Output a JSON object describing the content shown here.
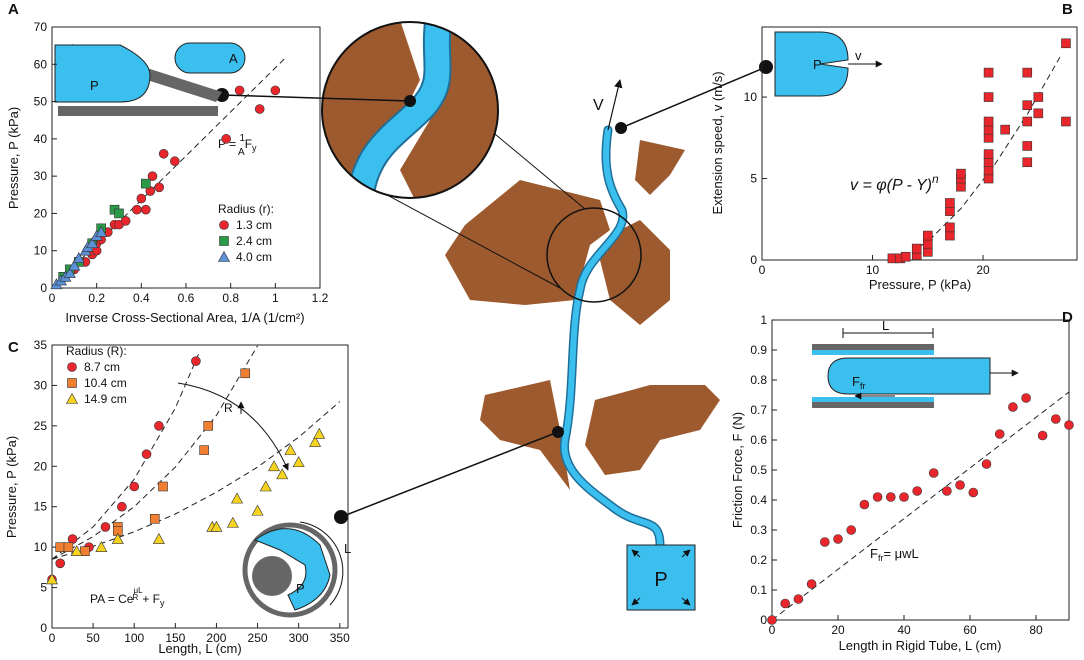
{
  "chart_data": [
    {
      "panel": "A",
      "type": "scatter",
      "xlabel": "Inverse Cross-Sectional Area, 1/A (1/cm²)",
      "ylabel": "Pressure, P (kPa)",
      "xlim": [
        0,
        1.2
      ],
      "xticks": [
        0,
        0.2,
        0.4,
        0.6,
        0.8,
        1,
        1.2
      ],
      "ylim": [
        0,
        70
      ],
      "yticks": [
        0,
        10,
        20,
        30,
        40,
        50,
        60,
        70
      ],
      "legend_title": "Radius (r):",
      "legend": "center right",
      "series": [
        {
          "name": "1.3 cm",
          "color": "#e8262b",
          "marker": "circle",
          "x": [
            0.1,
            0.15,
            0.18,
            0.2,
            0.2,
            0.22,
            0.25,
            0.28,
            0.3,
            0.33,
            0.38,
            0.42,
            0.4,
            0.44,
            0.48,
            0.45,
            0.5,
            0.55,
            0.78,
            0.84,
            0.93,
            1.0
          ],
          "values": [
            5,
            7,
            9,
            10,
            12,
            13,
            15,
            17,
            17,
            18,
            21,
            21,
            24,
            26,
            27,
            30,
            36,
            34,
            40,
            53,
            48,
            53
          ]
        },
        {
          "name": "2.4 cm",
          "color": "#2a9a48",
          "marker": "square",
          "x": [
            0.05,
            0.08,
            0.12,
            0.18,
            0.22,
            0.28,
            0.3,
            0.42
          ],
          "values": [
            3,
            5,
            7,
            12,
            16,
            21,
            20,
            28
          ]
        },
        {
          "name": "4.0 cm",
          "color": "#5b8fd6",
          "marker": "triangle",
          "x": [
            0.02,
            0.04,
            0.06,
            0.08,
            0.1,
            0.12,
            0.15,
            0.16,
            0.18,
            0.2,
            0.22
          ],
          "values": [
            1,
            2,
            3,
            4,
            6,
            8,
            10,
            11,
            12,
            14,
            15
          ]
        }
      ],
      "fit": {
        "x": [
          0,
          1.05
        ],
        "y": [
          0,
          62
        ]
      },
      "annotation": [
        "P = ",
        "1",
        "A",
        "F",
        "y"
      ],
      "inset_labels": [
        "P",
        "A"
      ]
    },
    {
      "panel": "B",
      "type": "scatter",
      "xlabel": "Pressure, P (kPa)",
      "ylabel": "Extension speed, v (m/s)",
      "xlim": [
        0,
        28.5
      ],
      "xticks": [
        0,
        10,
        20
      ],
      "ylim": [
        0,
        14.3
      ],
      "yticks": [
        0,
        5,
        10
      ],
      "series": [
        {
          "color": "#e8262b",
          "marker": "square",
          "x": [
            11.8,
            12.5,
            13,
            14,
            14,
            15,
            15,
            15,
            17,
            17,
            17,
            17,
            18,
            18,
            18,
            20.5,
            20.5,
            20.5,
            20.5,
            20.5,
            20.5,
            20.5,
            20.5,
            20.5,
            22,
            24,
            24,
            24,
            24,
            24,
            25,
            25,
            27.5,
            27.5
          ],
          "values": [
            0.1,
            0.1,
            0.2,
            0.3,
            0.7,
            0.5,
            1,
            1.5,
            1.5,
            2,
            3,
            3.5,
            4.5,
            5,
            5.3,
            5,
            5.5,
            6,
            6.5,
            7.5,
            8,
            8.5,
            10,
            11.5,
            8,
            6,
            7,
            8.5,
            9.5,
            11.5,
            9,
            10,
            8.5,
            13.3
          ]
        }
      ],
      "fit": {
        "x": [
          12,
          15,
          18,
          21,
          24,
          27
        ],
        "y": [
          0,
          1.12,
          3.16,
          5.8,
          8.94,
          12.5
        ]
      },
      "annotation": [
        "v = φ(P - Y)",
        "n"
      ],
      "inset_labels": [
        "P",
        "v"
      ]
    },
    {
      "panel": "C",
      "type": "scatter",
      "xlabel": "Length, L (cm)",
      "ylabel": "Pressure, P (kPa)",
      "xlim": [
        0,
        360
      ],
      "xticks": [
        0,
        50,
        100,
        150,
        200,
        250,
        300,
        350
      ],
      "ylim": [
        0,
        35
      ],
      "yticks": [
        0,
        5,
        10,
        15,
        20,
        25,
        30,
        35
      ],
      "legend_title": "Radius (R):",
      "legend": "upper left",
      "series": [
        {
          "name": "8.7 cm",
          "color": "#e8262b",
          "marker": "circle",
          "x": [
            0,
            10,
            15,
            25,
            45,
            65,
            85,
            100,
            115,
            130,
            175
          ],
          "values": [
            6,
            8,
            10,
            11,
            10,
            12.5,
            15,
            17.5,
            21.5,
            25,
            33
          ]
        },
        {
          "name": "10.4 cm",
          "color": "#f07f32",
          "marker": "square",
          "x": [
            10,
            20,
            40,
            80,
            80,
            125,
            135,
            185,
            190,
            235
          ],
          "values": [
            10,
            10,
            9.5,
            12.5,
            12,
            13.5,
            17.5,
            22,
            25,
            31.5
          ]
        },
        {
          "name": "14.9 cm",
          "color": "#f5d320",
          "marker": "triangle",
          "x": [
            0,
            30,
            60,
            80,
            130,
            195,
            200,
            220,
            225,
            250,
            260,
            270,
            280,
            290,
            300,
            320,
            325
          ],
          "values": [
            6,
            9.5,
            10,
            11,
            11,
            12.5,
            12.5,
            13,
            16,
            14.5,
            17.5,
            20,
            19,
            22,
            20.5,
            23,
            24
          ]
        }
      ],
      "fits": [
        {
          "x": [
            0,
            50,
            100,
            150,
            180
          ],
          "y": [
            8.5,
            12.5,
            18.4,
            27.2,
            34.3
          ]
        },
        {
          "x": [
            0,
            50,
            100,
            150,
            200,
            250
          ],
          "y": [
            8.5,
            11.3,
            15.0,
            19.9,
            26.3,
            34.9
          ]
        },
        {
          "x": [
            0,
            50,
            100,
            150,
            200,
            250,
            300,
            350
          ],
          "y": [
            8.5,
            10.1,
            11.9,
            14.1,
            16.8,
            19.9,
            23.6,
            28
          ]
        }
      ],
      "annotation": [
        "PA = Ce",
        "μL",
        "R",
        "+ F",
        "y"
      ],
      "arrow_label": "R",
      "inset_labels": [
        "P",
        "L"
      ]
    },
    {
      "panel": "D",
      "type": "scatter",
      "xlabel": "Length in Rigid Tube, L (cm)",
      "ylabel": "Friction Force, F (N)",
      "xlim": [
        0,
        90
      ],
      "xticks": [
        0,
        20,
        40,
        60,
        80
      ],
      "ylim": [
        0,
        1
      ],
      "yticks": [
        0,
        0.1,
        0.2,
        0.3,
        0.4,
        0.5,
        0.6,
        0.7,
        0.8,
        0.9,
        1
      ],
      "series": [
        {
          "color": "#e8262b",
          "marker": "circle",
          "x": [
            0,
            4,
            8,
            12,
            16,
            20,
            24,
            28,
            32,
            36,
            40,
            44,
            49,
            53,
            57,
            61,
            65,
            69,
            73,
            77,
            82,
            86,
            90
          ],
          "values": [
            0,
            0.055,
            0.07,
            0.12,
            0.26,
            0.27,
            0.3,
            0.385,
            0.41,
            0.41,
            0.41,
            0.43,
            0.49,
            0.43,
            0.45,
            0.425,
            0.52,
            0.62,
            0.71,
            0.74,
            0.615,
            0.67,
            0.65
          ]
        }
      ],
      "fit": {
        "x": [
          0,
          90
        ],
        "y": [
          0,
          0.76
        ]
      },
      "annotation": [
        "F",
        "fr",
        "=  μwL"
      ],
      "inset_labels": [
        "L",
        "F",
        "fr"
      ]
    }
  ],
  "diagram": {
    "velocity": "V",
    "pressure": "P"
  }
}
